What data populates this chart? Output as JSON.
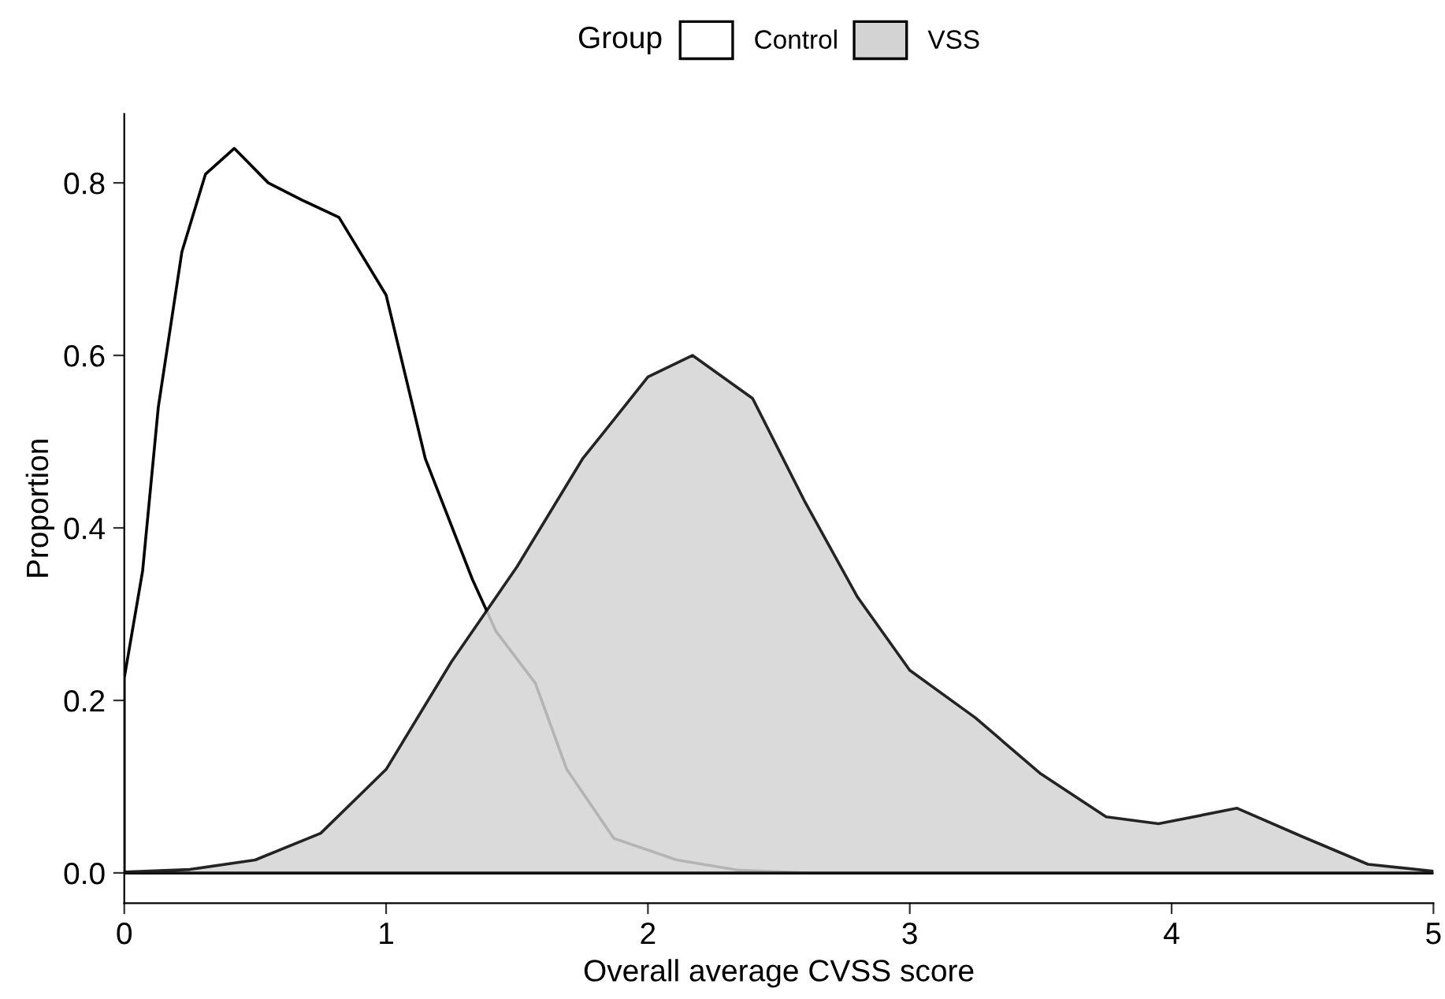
{
  "chart_data": {
    "type": "area",
    "xlabel": "Overall average CVSS score",
    "ylabel": "Proportion",
    "legend_title": "Group",
    "legend": "top",
    "grid": false,
    "xlim": [
      0,
      5
    ],
    "ylim": [
      -0.035,
      0.88
    ],
    "xticks": [
      0,
      1,
      2,
      3,
      4,
      5
    ],
    "yticks": [
      {
        "value": 0,
        "label": "0.0"
      },
      {
        "value": 0.2,
        "label": "0.2"
      },
      {
        "value": 0.4,
        "label": "0.4"
      },
      {
        "value": 0.6,
        "label": "0.6"
      },
      {
        "value": 0.8,
        "label": "0.8"
      }
    ],
    "series": [
      {
        "name": "Control",
        "color": "#ffffff",
        "x": [
          0,
          0.07,
          0.13,
          0.22,
          0.31,
          0.42,
          0.55,
          0.68,
          0.82,
          1.0,
          1.15,
          1.33,
          1.42,
          1.57,
          1.69,
          1.87,
          2.11,
          2.35,
          2.6,
          3.0,
          3.5,
          4.0,
          4.5,
          5.0
        ],
        "values": [
          0.226,
          0.35,
          0.54,
          0.72,
          0.81,
          0.84,
          0.8,
          0.78,
          0.76,
          0.67,
          0.48,
          0.34,
          0.28,
          0.22,
          0.12,
          0.04,
          0.015,
          0.003,
          0,
          0,
          0,
          0,
          0,
          0
        ]
      },
      {
        "name": "VSS",
        "color": "#d3d3d3",
        "x": [
          0,
          0.25,
          0.5,
          0.75,
          1.0,
          1.25,
          1.5,
          1.75,
          2.0,
          2.17,
          2.4,
          2.6,
          2.8,
          3.0,
          3.25,
          3.5,
          3.75,
          3.95,
          4.25,
          4.5,
          4.75,
          5.0
        ],
        "values": [
          0.001,
          0.004,
          0.015,
          0.046,
          0.12,
          0.245,
          0.355,
          0.48,
          0.575,
          0.6,
          0.55,
          0.43,
          0.32,
          0.235,
          0.18,
          0.115,
          0.065,
          0.057,
          0.075,
          0.042,
          0.01,
          0.002
        ]
      }
    ]
  }
}
